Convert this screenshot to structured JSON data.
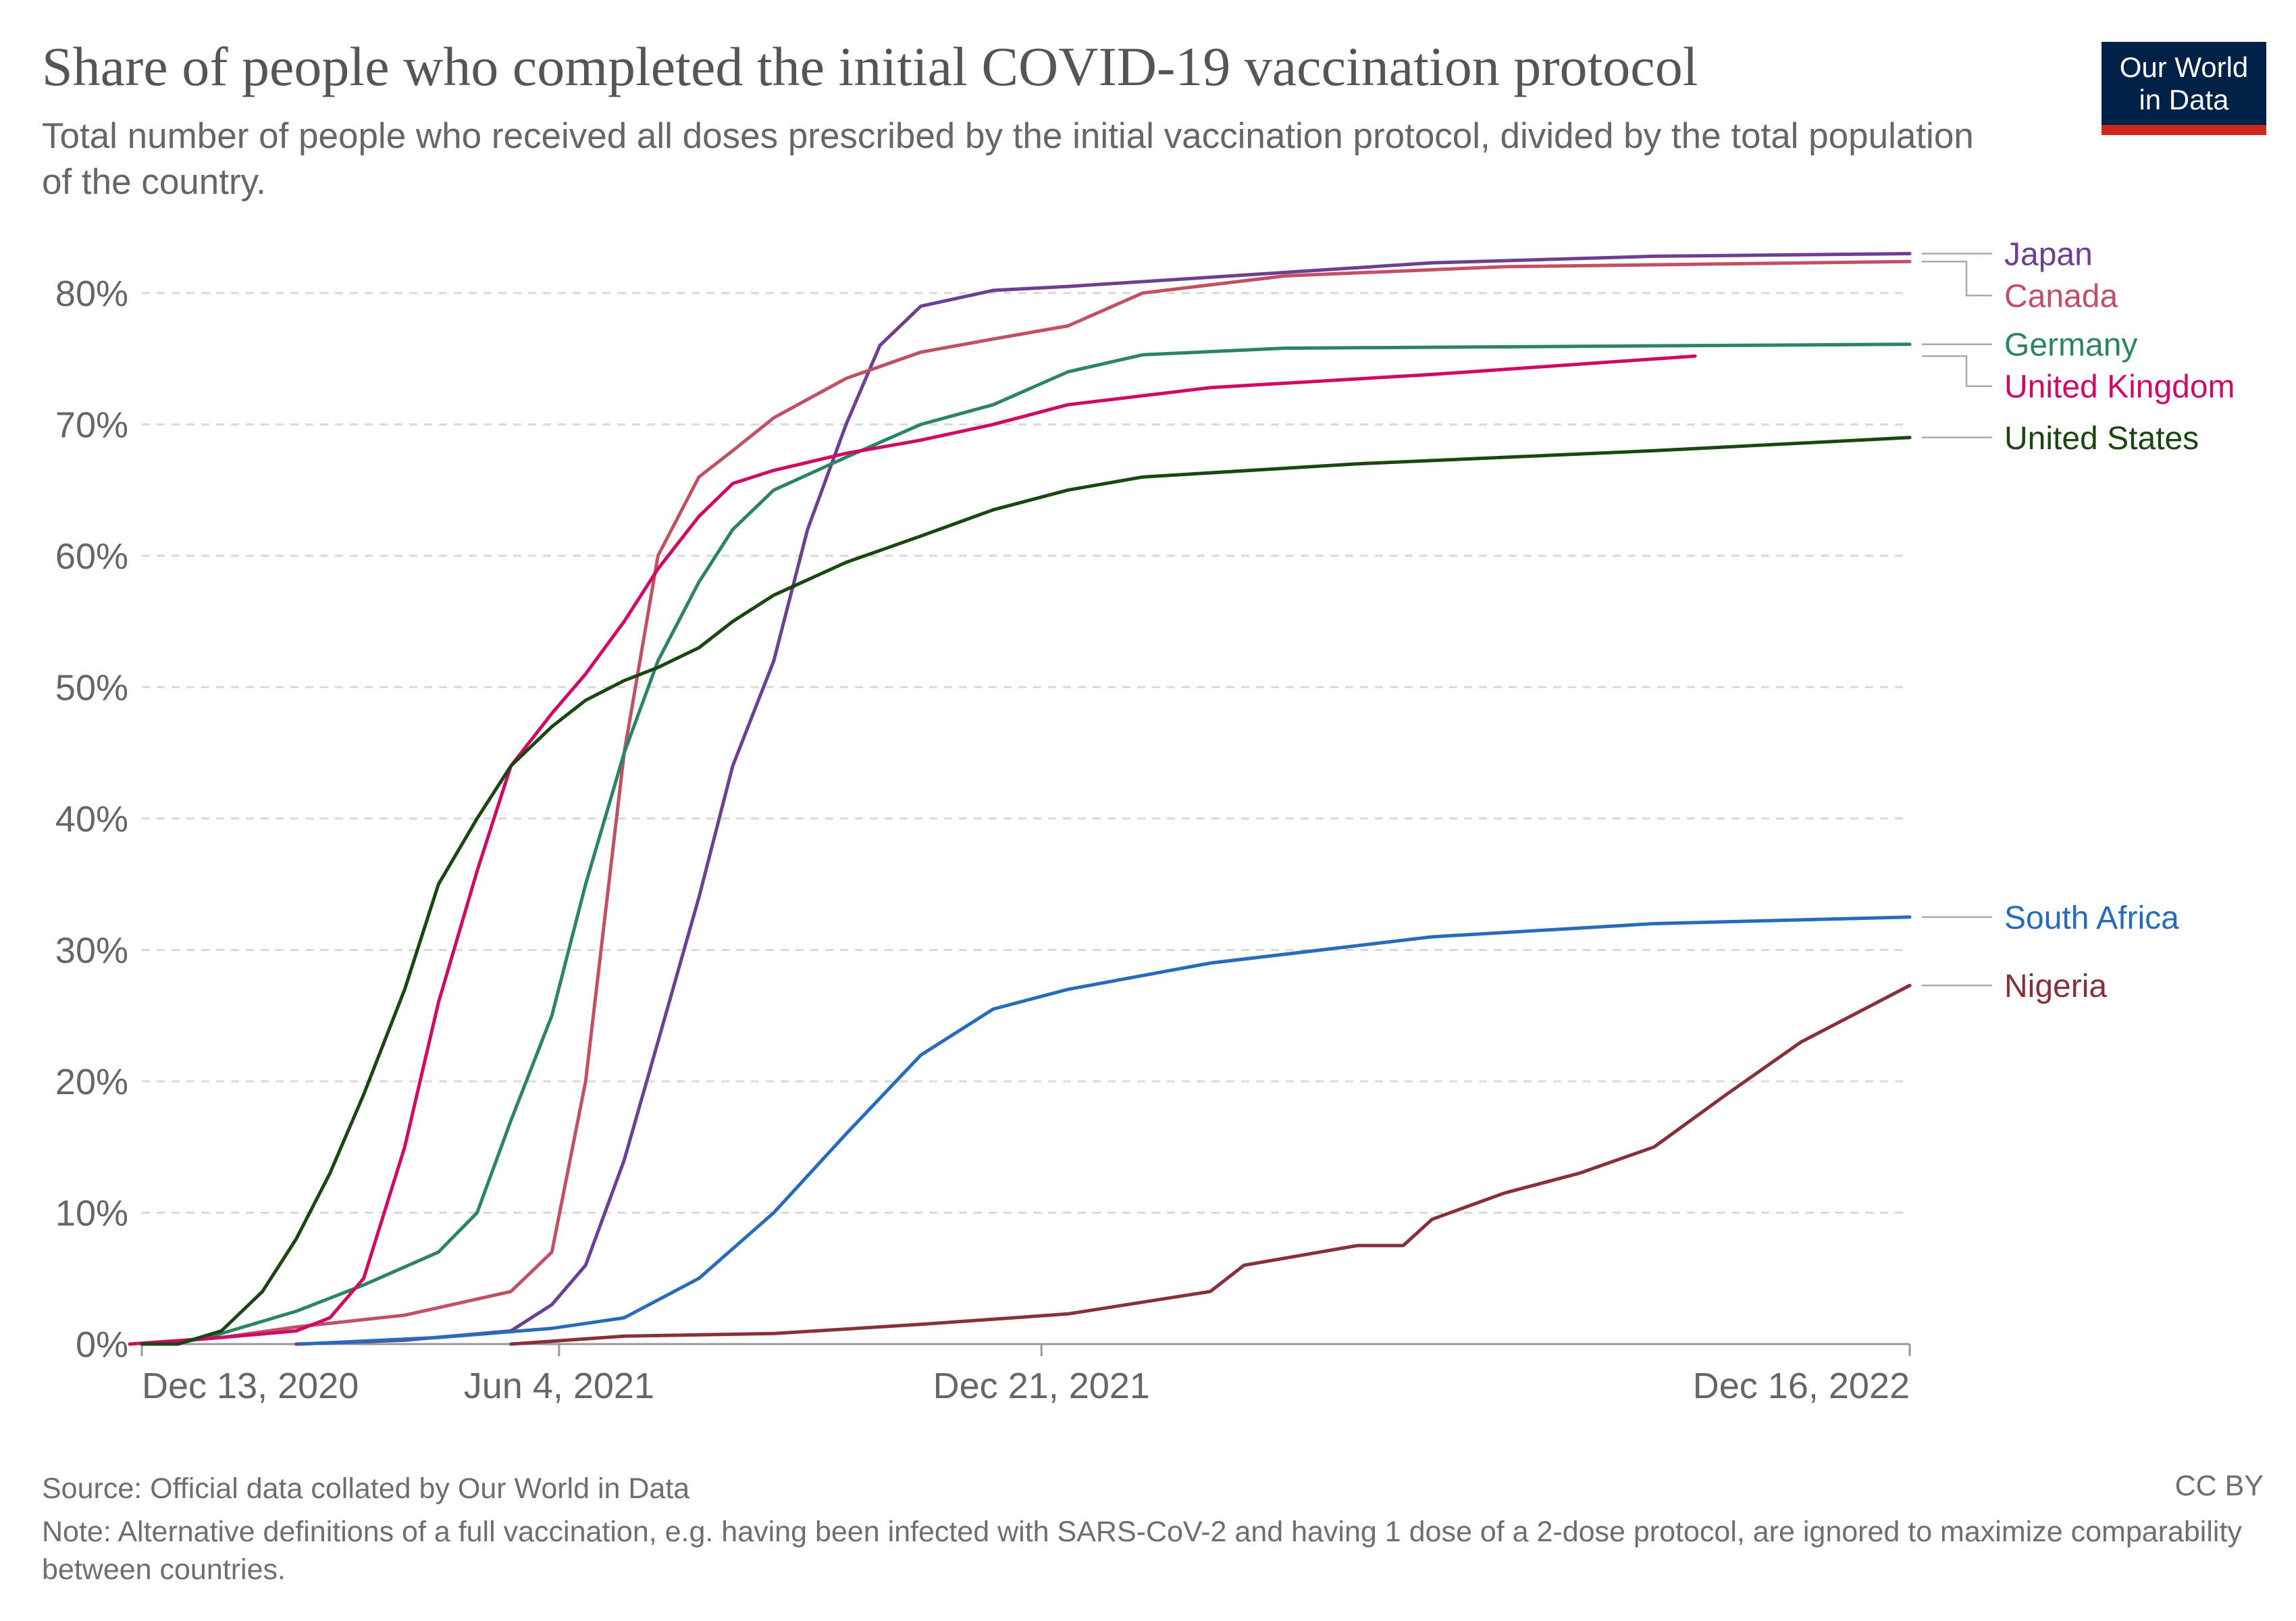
{
  "header": {
    "title": "Share of people who completed the initial COVID-19 vaccination protocol",
    "subtitle": "Total number of people who received all doses prescribed by the initial vaccination protocol, divided by the total population of the country."
  },
  "logo": {
    "line1": "Our World",
    "line2": "in Data",
    "bg_color": "#002147",
    "accent_color": "#ce261e"
  },
  "footer": {
    "source": "Source: Official data collated by Our World in Data",
    "license": "CC BY",
    "note": "Note: Alternative definitions of a full vaccination, e.g. having been infected with SARS-CoV-2 and having 1 dose of a 2-dose protocol, are ignored to maximize comparability between countries."
  },
  "chart_data": {
    "type": "line",
    "title": "Share of people who completed the initial COVID-19 vaccination protocol",
    "xlabel": "",
    "ylabel": "",
    "xlim": [
      "2020-12-13",
      "2022-12-16"
    ],
    "ylim": [
      0,
      80
    ],
    "yticks": [
      0,
      10,
      20,
      30,
      40,
      50,
      60,
      70,
      80
    ],
    "ytick_labels": [
      "0%",
      "10%",
      "20%",
      "30%",
      "40%",
      "50%",
      "60%",
      "70%",
      "80%"
    ],
    "xticks": [
      "2020-12-13",
      "2021-06-04",
      "2021-12-21",
      "2022-12-16"
    ],
    "xtick_labels": [
      "Dec 13, 2020",
      "Jun 4, 2021",
      "Dec 21, 2021",
      "Dec 16, 2022"
    ],
    "grid": "horizontal-dashed",
    "legend": "right",
    "series": [
      {
        "name": "Japan",
        "color": "#6d3e91",
        "points": [
          [
            "2021-02-15",
            0
          ],
          [
            "2021-04-01",
            0.3
          ],
          [
            "2021-05-15",
            1
          ],
          [
            "2021-06-01",
            3
          ],
          [
            "2021-06-15",
            6
          ],
          [
            "2021-07-01",
            14
          ],
          [
            "2021-07-15",
            23
          ],
          [
            "2021-08-01",
            34
          ],
          [
            "2021-08-15",
            44
          ],
          [
            "2021-09-01",
            52
          ],
          [
            "2021-09-15",
            62
          ],
          [
            "2021-10-01",
            70
          ],
          [
            "2021-10-15",
            76
          ],
          [
            "2021-11-01",
            79
          ],
          [
            "2021-12-01",
            80.2
          ],
          [
            "2022-01-01",
            80.5
          ],
          [
            "2022-03-01",
            81.2
          ],
          [
            "2022-06-01",
            82.3
          ],
          [
            "2022-09-01",
            82.8
          ],
          [
            "2022-12-16",
            83
          ]
        ]
      },
      {
        "name": "Canada",
        "color": "#c15065",
        "points": [
          [
            "2020-12-15",
            0
          ],
          [
            "2021-01-15",
            0.5
          ],
          [
            "2021-02-15",
            1.3
          ],
          [
            "2021-04-01",
            2.2
          ],
          [
            "2021-05-15",
            4
          ],
          [
            "2021-06-01",
            7
          ],
          [
            "2021-06-15",
            20
          ],
          [
            "2021-07-01",
            45
          ],
          [
            "2021-07-15",
            60
          ],
          [
            "2021-08-01",
            66
          ],
          [
            "2021-08-15",
            68
          ],
          [
            "2021-09-01",
            70.5
          ],
          [
            "2021-10-01",
            73.5
          ],
          [
            "2021-11-01",
            75.5
          ],
          [
            "2021-12-01",
            76.5
          ],
          [
            "2022-01-01",
            77.5
          ],
          [
            "2022-02-01",
            80
          ],
          [
            "2022-04-01",
            81.3
          ],
          [
            "2022-07-01",
            82
          ],
          [
            "2022-12-16",
            82.4
          ]
        ]
      },
      {
        "name": "Germany",
        "color": "#2c8465",
        "points": [
          [
            "2020-12-27",
            0
          ],
          [
            "2021-01-15",
            0.8
          ],
          [
            "2021-02-15",
            2.5
          ],
          [
            "2021-03-15",
            4.5
          ],
          [
            "2021-04-15",
            7
          ],
          [
            "2021-05-01",
            10
          ],
          [
            "2021-05-15",
            17
          ],
          [
            "2021-06-01",
            25
          ],
          [
            "2021-06-15",
            35
          ],
          [
            "2021-07-01",
            45
          ],
          [
            "2021-07-15",
            52
          ],
          [
            "2021-08-01",
            58
          ],
          [
            "2021-08-15",
            62
          ],
          [
            "2021-09-01",
            65
          ],
          [
            "2021-10-01",
            67.5
          ],
          [
            "2021-11-01",
            70
          ],
          [
            "2021-12-01",
            71.5
          ],
          [
            "2022-01-01",
            74
          ],
          [
            "2022-02-01",
            75.3
          ],
          [
            "2022-04-01",
            75.8
          ],
          [
            "2022-12-16",
            76.1
          ]
        ]
      },
      {
        "name": "United Kingdom",
        "color": "#cf0a66",
        "points": [
          [
            "2020-12-08",
            0
          ],
          [
            "2021-01-15",
            0.5
          ],
          [
            "2021-02-15",
            1
          ],
          [
            "2021-03-01",
            2
          ],
          [
            "2021-03-15",
            5
          ],
          [
            "2021-04-01",
            15
          ],
          [
            "2021-04-15",
            26
          ],
          [
            "2021-05-01",
            36
          ],
          [
            "2021-05-15",
            44
          ],
          [
            "2021-06-01",
            48
          ],
          [
            "2021-06-15",
            51
          ],
          [
            "2021-07-01",
            55
          ],
          [
            "2021-07-15",
            59
          ],
          [
            "2021-08-01",
            63
          ],
          [
            "2021-08-15",
            65.5
          ],
          [
            "2021-09-01",
            66.5
          ],
          [
            "2021-10-01",
            67.8
          ],
          [
            "2021-11-01",
            68.8
          ],
          [
            "2021-12-01",
            70
          ],
          [
            "2022-01-01",
            71.5
          ],
          [
            "2022-03-01",
            72.8
          ],
          [
            "2022-06-01",
            73.8
          ],
          [
            "2022-09-18",
            75.2
          ]
        ]
      },
      {
        "name": "United States",
        "color": "#18470f",
        "points": [
          [
            "2020-12-13",
            0
          ],
          [
            "2020-12-28",
            0
          ],
          [
            "2021-01-15",
            1
          ],
          [
            "2021-02-01",
            4
          ],
          [
            "2021-02-15",
            8
          ],
          [
            "2021-03-01",
            13
          ],
          [
            "2021-03-15",
            19
          ],
          [
            "2021-04-01",
            27
          ],
          [
            "2021-04-15",
            35
          ],
          [
            "2021-05-01",
            40
          ],
          [
            "2021-05-15",
            44
          ],
          [
            "2021-06-01",
            47
          ],
          [
            "2021-06-15",
            49
          ],
          [
            "2021-07-01",
            50.5
          ],
          [
            "2021-07-15",
            51.5
          ],
          [
            "2021-08-01",
            53
          ],
          [
            "2021-08-15",
            55
          ],
          [
            "2021-09-01",
            57
          ],
          [
            "2021-10-01",
            59.5
          ],
          [
            "2021-11-01",
            61.5
          ],
          [
            "2021-12-01",
            63.5
          ],
          [
            "2022-01-01",
            65
          ],
          [
            "2022-02-01",
            66
          ],
          [
            "2022-05-01",
            67
          ],
          [
            "2022-09-01",
            68
          ],
          [
            "2022-12-16",
            69
          ]
        ]
      },
      {
        "name": "South Africa",
        "color": "#286bbb",
        "points": [
          [
            "2021-02-17",
            0
          ],
          [
            "2021-04-15",
            0.5
          ],
          [
            "2021-06-01",
            1.2
          ],
          [
            "2021-07-01",
            2
          ],
          [
            "2021-08-01",
            5
          ],
          [
            "2021-09-01",
            10
          ],
          [
            "2021-10-01",
            16
          ],
          [
            "2021-11-01",
            22
          ],
          [
            "2021-12-01",
            25.5
          ],
          [
            "2022-01-01",
            27
          ],
          [
            "2022-03-01",
            29
          ],
          [
            "2022-06-01",
            31
          ],
          [
            "2022-09-01",
            32
          ],
          [
            "2022-12-16",
            32.5
          ]
        ]
      },
      {
        "name": "Nigeria",
        "color": "#883039",
        "points": [
          [
            "2021-05-15",
            0
          ],
          [
            "2021-07-01",
            0.6
          ],
          [
            "2021-09-01",
            0.8
          ],
          [
            "2021-11-01",
            1.5
          ],
          [
            "2022-01-01",
            2.3
          ],
          [
            "2022-03-01",
            4
          ],
          [
            "2022-03-15",
            6
          ],
          [
            "2022-05-01",
            7.5
          ],
          [
            "2022-05-20",
            7.5
          ],
          [
            "2022-06-01",
            9.5
          ],
          [
            "2022-07-01",
            11.5
          ],
          [
            "2022-08-01",
            13
          ],
          [
            "2022-09-01",
            15
          ],
          [
            "2022-10-01",
            19
          ],
          [
            "2022-11-01",
            23
          ],
          [
            "2022-12-16",
            27.3
          ]
        ]
      }
    ]
  }
}
